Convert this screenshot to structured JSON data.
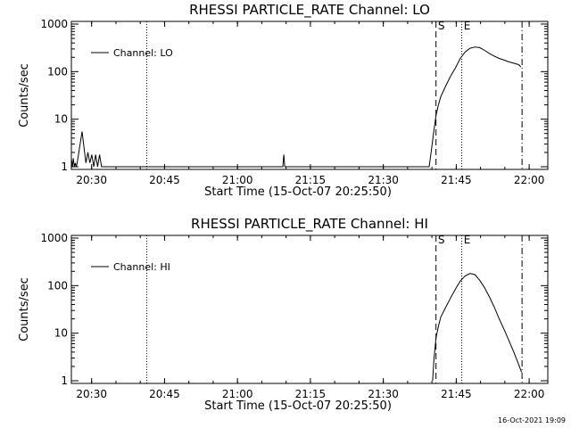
{
  "footer_stamp": "16-Oct-2021 19:09",
  "chart_data": [
    {
      "type": "line",
      "title": "RHESSI PARTICLE_RATE Channel: LO",
      "xlabel": "Start Time (15-Oct-07 20:25:50)",
      "ylabel": "Counts/sec",
      "x_ticks": [
        "20:30",
        "20:45",
        "21:00",
        "21:15",
        "21:30",
        "21:45",
        "22:00"
      ],
      "y_ticks": [
        "1",
        "10",
        "100",
        "1000"
      ],
      "y_scale": "log",
      "ylim": [
        1,
        1000
      ],
      "xlim_minutes_after_start": [
        0,
        98
      ],
      "legend": "Channel: LO",
      "legend_position": "top-left",
      "markers": [
        {
          "label": "",
          "x_min": 15.5,
          "style": "dotted"
        },
        {
          "label": "S",
          "x_min": 75.0,
          "style": "dashed"
        },
        {
          "label": "E",
          "x_min": 80.3,
          "style": "dotted"
        },
        {
          "label": "",
          "x_min": 92.7,
          "style": "dashdot"
        }
      ],
      "series": [
        {
          "name": "Channel: LO",
          "x_minutes_after_start": [
            0,
            0.2,
            0.4,
            0.6,
            0.8,
            1.0,
            1.2,
            1.8,
            2.2,
            2.6,
            3.0,
            3.4,
            3.8,
            4.2,
            4.6,
            5.0,
            5.4,
            5.8,
            6.2,
            11,
            40,
            43.5,
            43.7,
            43.9,
            44.1,
            60,
            73.6,
            74.0,
            74.5,
            75.0,
            75.5,
            76.0,
            77.0,
            78.0,
            79.0,
            80.0,
            81.0,
            82.0,
            83.0,
            84.0,
            85.0,
            86.0,
            87.0,
            88.0,
            89.0,
            90.0,
            91.0,
            92.0,
            92.5
          ],
          "y_counts": [
            1.5,
            1,
            1.5,
            1,
            1.2,
            1,
            1.2,
            3,
            5.5,
            2.5,
            1.2,
            2,
            1.2,
            1.8,
            1,
            1.8,
            1,
            1.8,
            1,
            1,
            1,
            1,
            1.8,
            1,
            1,
            1,
            1,
            2,
            5,
            12,
            20,
            30,
            50,
            80,
            120,
            190,
            260,
            310,
            330,
            320,
            280,
            240,
            210,
            190,
            175,
            160,
            150,
            140,
            125
          ]
        }
      ]
    },
    {
      "type": "line",
      "title": "RHESSI PARTICLE_RATE Channel: HI",
      "xlabel": "Start Time (15-Oct-07 20:25:50)",
      "ylabel": "Counts/sec",
      "x_ticks": [
        "20:30",
        "20:45",
        "21:00",
        "21:15",
        "21:30",
        "21:45",
        "22:00"
      ],
      "y_ticks": [
        "1",
        "10",
        "100",
        "1000"
      ],
      "y_scale": "log",
      "ylim": [
        1,
        1000
      ],
      "xlim_minutes_after_start": [
        0,
        98
      ],
      "legend": "Channel: HI",
      "legend_position": "top-left",
      "markers": [
        {
          "label": "",
          "x_min": 15.5,
          "style": "dotted"
        },
        {
          "label": "S",
          "x_min": 75.0,
          "style": "dashed"
        },
        {
          "label": "E",
          "x_min": 80.3,
          "style": "dotted"
        },
        {
          "label": "",
          "x_min": 92.7,
          "style": "dashdot"
        }
      ],
      "series": [
        {
          "name": "Channel: HI",
          "x_minutes_after_start": [
            74.3,
            74.6,
            75.0,
            75.5,
            76.0,
            77.0,
            78.0,
            79.0,
            80.0,
            81.0,
            82.0,
            83.0,
            84.0,
            85.0,
            86.0,
            87.0,
            88.0,
            89.0,
            90.0,
            91.0,
            92.0,
            92.6
          ],
          "y_counts": [
            1,
            3,
            8,
            14,
            22,
            35,
            55,
            85,
            125,
            160,
            180,
            170,
            130,
            90,
            58,
            35,
            20,
            12,
            7,
            4,
            2.2,
            1.5
          ]
        }
      ]
    }
  ]
}
